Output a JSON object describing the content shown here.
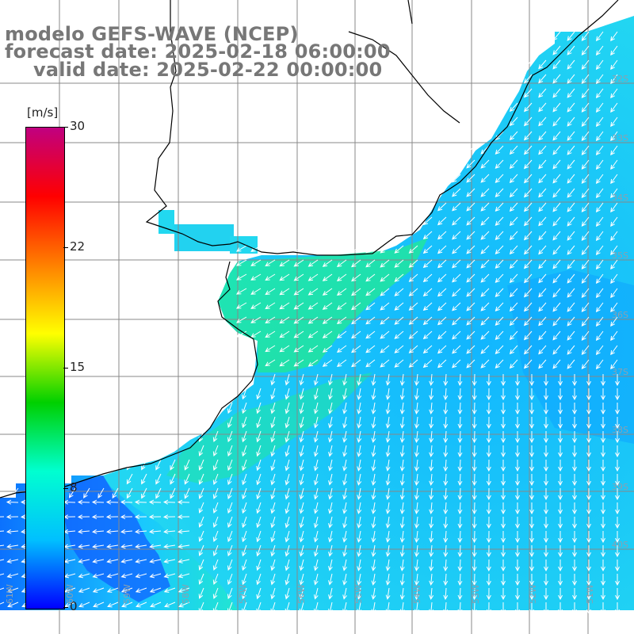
{
  "title": {
    "line1": "modelo GEFS-WAVE (NCEP)",
    "line2": "forecast date: 2025-02-18 06:00:00",
    "line3": "valid date: 2025-02-22 00:00:00"
  },
  "colorbar": {
    "unit": "[m/s]",
    "ticks": [
      "30",
      "22",
      "15",
      "8",
      "0"
    ],
    "colors": [
      "#c00080",
      "#ff0000",
      "#ff8000",
      "#ffff00",
      "#00d000",
      "#00ffd0",
      "#00c0ff",
      "#0000ff"
    ]
  },
  "map": {
    "variable": "wind speed and direction",
    "colors": {
      "land": "#ffffff",
      "coast": "#000000",
      "grid": "#888888",
      "arrows": "#ffffff"
    },
    "lat_labels": [
      "32S",
      "33S",
      "34S",
      "35S",
      "36S",
      "37S",
      "38S",
      "39S",
      "40S"
    ],
    "lon_labels": [
      "61W",
      "60W",
      "59W",
      "58W",
      "57W",
      "56W",
      "55W",
      "54W",
      "53W",
      "52W",
      "51W"
    ]
  }
}
